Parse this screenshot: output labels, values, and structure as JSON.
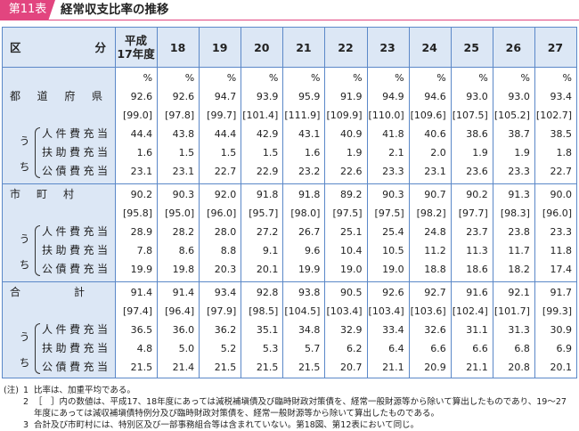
{
  "header": {
    "tag": "第11表",
    "title": "経常収支比率の推移"
  },
  "table": {
    "corner": "区分",
    "columns": [
      "平成\n17年度",
      "18",
      "19",
      "20",
      "21",
      "22",
      "23",
      "24",
      "25",
      "26",
      "27"
    ],
    "unit": "%",
    "groups": [
      {
        "label": "都道府県",
        "ratio": [
          "92.6",
          "92.6",
          "94.7",
          "93.9",
          "95.9",
          "91.9",
          "94.9",
          "94.6",
          "93.0",
          "93.0",
          "93.4"
        ],
        "adjusted": [
          "[99.0]",
          "[97.8]",
          "[99.7]",
          "[101.4]",
          "[111.9]",
          "[109.9]",
          "[110.0]",
          "[109.6]",
          "[107.5]",
          "[105.2]",
          "[102.7]"
        ],
        "sub_heading": "うち",
        "subs": [
          {
            "label": "人件費充当",
            "values": [
              "44.4",
              "43.8",
              "44.4",
              "42.9",
              "43.1",
              "40.9",
              "41.8",
              "40.6",
              "38.6",
              "38.7",
              "38.5"
            ]
          },
          {
            "label": "扶助費充当",
            "values": [
              "1.6",
              "1.5",
              "1.5",
              "1.5",
              "1.6",
              "1.9",
              "2.1",
              "2.0",
              "1.9",
              "1.9",
              "1.8"
            ]
          },
          {
            "label": "公債費充当",
            "values": [
              "23.1",
              "23.1",
              "22.7",
              "22.9",
              "23.2",
              "22.6",
              "23.3",
              "23.1",
              "23.6",
              "23.3",
              "22.7"
            ]
          }
        ]
      },
      {
        "label": "市町村",
        "ratio": [
          "90.2",
          "90.3",
          "92.0",
          "91.8",
          "91.8",
          "89.2",
          "90.3",
          "90.7",
          "90.2",
          "91.3",
          "90.0"
        ],
        "adjusted": [
          "[95.8]",
          "[95.0]",
          "[96.0]",
          "[95.7]",
          "[98.0]",
          "[97.5]",
          "[97.5]",
          "[98.2]",
          "[97.7]",
          "[98.3]",
          "[96.0]"
        ],
        "sub_heading": "うち",
        "subs": [
          {
            "label": "人件費充当",
            "values": [
              "28.9",
              "28.2",
              "28.0",
              "27.2",
              "26.7",
              "25.1",
              "25.4",
              "24.8",
              "23.7",
              "23.8",
              "23.3"
            ]
          },
          {
            "label": "扶助費充当",
            "values": [
              "7.8",
              "8.6",
              "8.8",
              "9.1",
              "9.6",
              "10.4",
              "10.5",
              "11.2",
              "11.3",
              "11.7",
              "11.8"
            ]
          },
          {
            "label": "公債費充当",
            "values": [
              "19.9",
              "19.8",
              "20.3",
              "20.1",
              "19.9",
              "19.0",
              "19.0",
              "18.8",
              "18.6",
              "18.2",
              "17.4"
            ]
          }
        ]
      },
      {
        "label": "合計",
        "ratio": [
          "91.4",
          "91.4",
          "93.4",
          "92.8",
          "93.8",
          "90.5",
          "92.6",
          "92.7",
          "91.6",
          "92.1",
          "91.7"
        ],
        "adjusted": [
          "[97.4]",
          "[96.4]",
          "[97.9]",
          "[98.5]",
          "[104.5]",
          "[103.4]",
          "[103.4]",
          "[103.6]",
          "[102.4]",
          "[101.7]",
          "[99.3]"
        ],
        "sub_heading": "うち",
        "subs": [
          {
            "label": "人件費充当",
            "values": [
              "36.5",
              "36.0",
              "36.2",
              "35.1",
              "34.8",
              "32.9",
              "33.4",
              "32.6",
              "31.1",
              "31.3",
              "30.9"
            ]
          },
          {
            "label": "扶助費充当",
            "values": [
              "4.8",
              "5.0",
              "5.2",
              "5.3",
              "5.7",
              "6.2",
              "6.4",
              "6.6",
              "6.6",
              "6.8",
              "6.9"
            ]
          },
          {
            "label": "公債費充当",
            "values": [
              "21.5",
              "21.4",
              "21.5",
              "21.5",
              "21.5",
              "20.7",
              "21.1",
              "20.9",
              "21.1",
              "20.8",
              "20.1"
            ]
          }
        ]
      }
    ]
  },
  "notes": {
    "prefix": "(注)",
    "items": [
      {
        "marker": "1",
        "text": "比率は、加重平均である。"
      },
      {
        "marker": "2",
        "text": "［　］内の数値は、平成17、18年度にあっては減税補塡債及び臨時財政対策債を、経常一般財源等から除いて算出したものであり、19～27年度にあっては減収補塡債特例分及び臨時財政対策債を、経常一般財源等から除いて算出したものである。"
      },
      {
        "marker": "3",
        "text": "合計及び市町村には、特別区及び一部事務組合等は含まれていない。第18図、第12表において同じ。"
      }
    ]
  }
}
